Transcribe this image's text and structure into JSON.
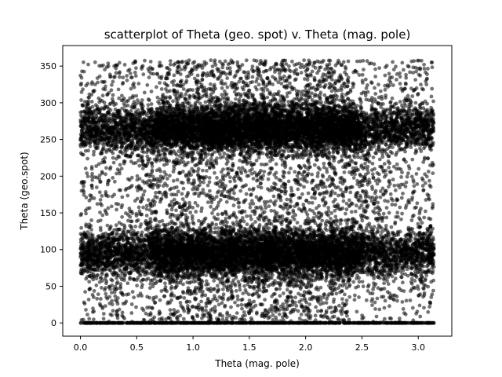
{
  "chart_data": {
    "type": "scatter",
    "title": "scatterplot of Theta (geo. spot) v. Theta (mag. pole)",
    "xlabel": "Theta (mag. pole)",
    "ylabel": "Theta (geo.spot)",
    "xlim": [
      -0.157,
      3.298
    ],
    "ylim": [
      -18,
      378
    ],
    "xticks": [
      0.0,
      0.5,
      1.0,
      1.5,
      2.0,
      2.5,
      3.0
    ],
    "xtick_labels": [
      "0.0",
      "0.5",
      "1.0",
      "1.5",
      "2.0",
      "2.5",
      "3.0"
    ],
    "yticks": [
      0,
      50,
      100,
      150,
      200,
      250,
      300,
      350
    ],
    "ytick_labels": [
      "0",
      "50",
      "100",
      "150",
      "200",
      "250",
      "300",
      "350"
    ],
    "grid": false,
    "legend": "none",
    "point_color": "#000000",
    "point_alpha": 0.55,
    "x_range_of_points": [
      0.0,
      3.14
    ],
    "y_range_of_points": [
      0,
      358
    ],
    "dense_bands_y": [
      [
        55,
        135
      ],
      [
        225,
        305
      ]
    ],
    "baseline_rows_y": [
      0
    ],
    "point_count_estimate": 20000
  }
}
